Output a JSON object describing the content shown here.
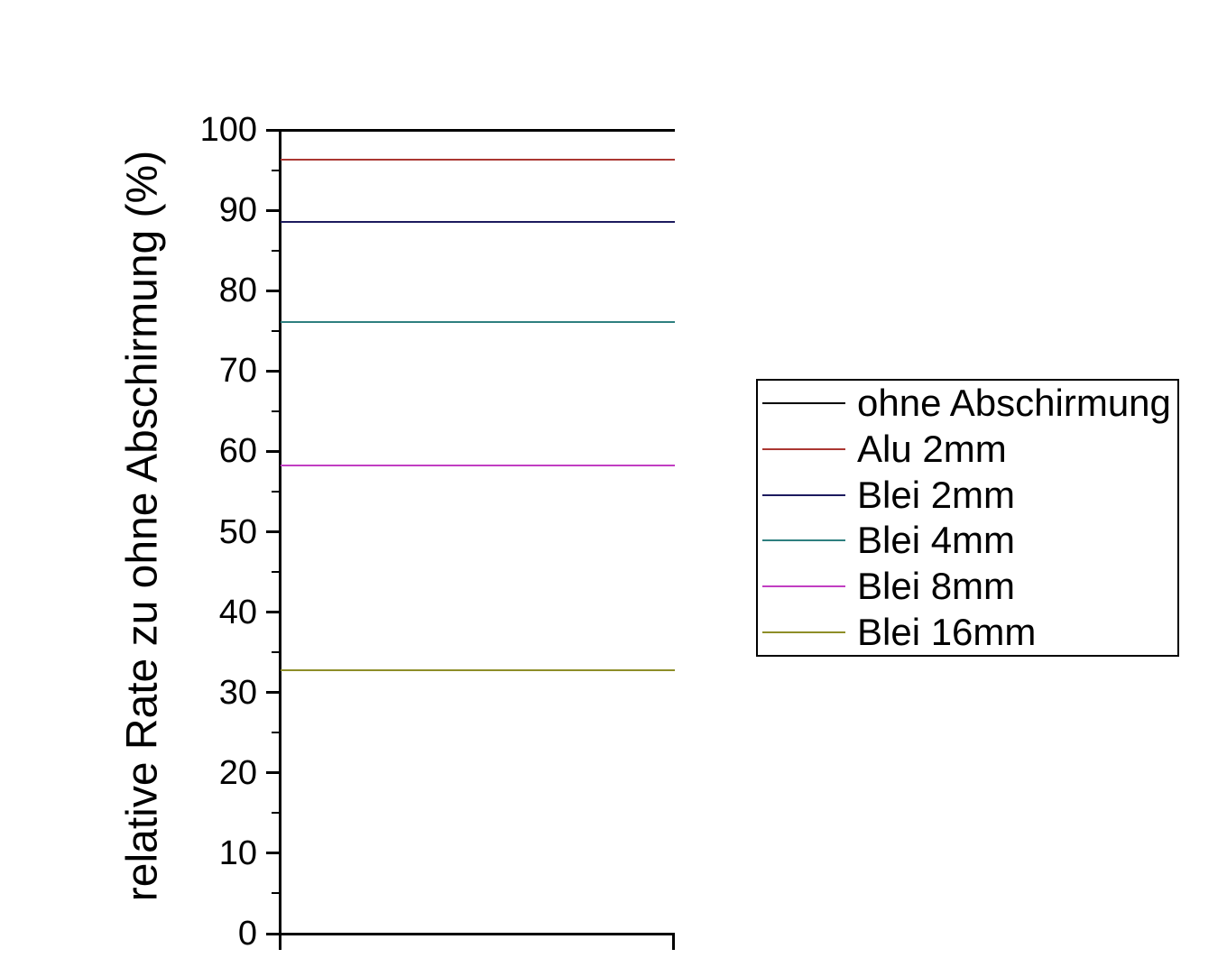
{
  "chart_data": {
    "type": "line",
    "title": "",
    "xlabel": "",
    "ylabel": "relative Rate zu ohne Abschirmung (%)",
    "ylim": [
      0,
      100
    ],
    "y_major_ticks": [
      0,
      10,
      20,
      30,
      40,
      50,
      60,
      70,
      80,
      90,
      100
    ],
    "y_minor_tick_step": 5,
    "grid": false,
    "legend_position": "right-outside",
    "series": [
      {
        "name": "ohne Abschirmung",
        "value": 100.0,
        "color": "#000000"
      },
      {
        "name": "Alu 2mm",
        "value": 96.3,
        "color": "#ab3732"
      },
      {
        "name": "Blei 2mm",
        "value": 88.6,
        "color": "#1c1a5e"
      },
      {
        "name": "Blei 4mm",
        "value": 76.1,
        "color": "#2e7f7f"
      },
      {
        "name": "Blei 8mm",
        "value": 58.2,
        "color": "#c13ec2"
      },
      {
        "name": "Blei 16mm",
        "value": 32.8,
        "color": "#8e8e28"
      }
    ]
  }
}
